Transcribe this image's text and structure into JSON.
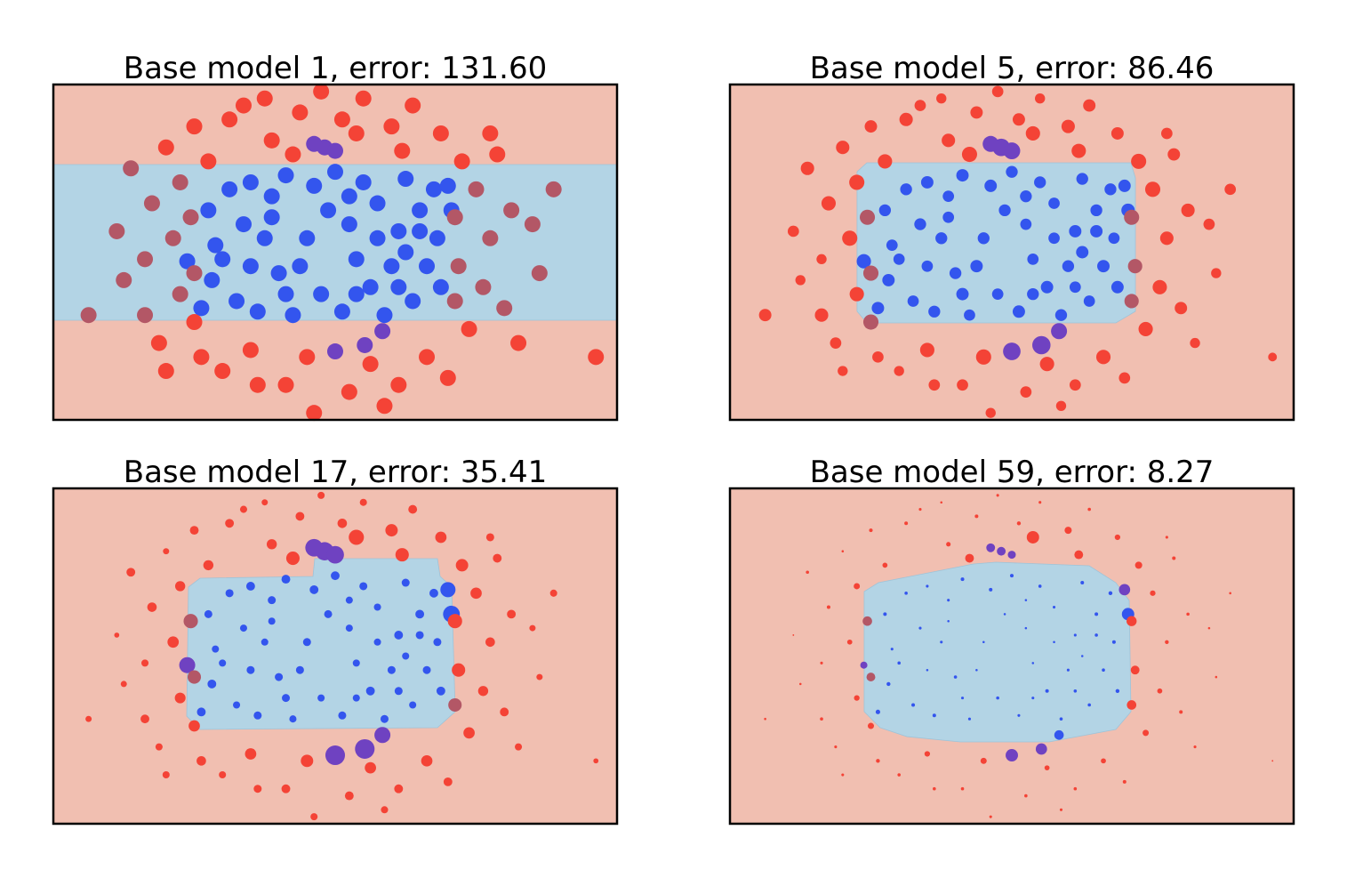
{
  "chart_data": {
    "type": "scatter",
    "grid": false,
    "axes_ticks": false,
    "xlim": [
      -4,
      4
    ],
    "ylim": [
      -2.4,
      2.4
    ],
    "colors": {
      "class_0_region": "#f1bfb1",
      "class_1_region": "#b3d4e5",
      "class_0_point": "#f44336",
      "class_1_point": "#3355ee",
      "class_0_point_in_class_1_region": "#b35766",
      "class_1_point_in_class_0_region": "#6f42c1",
      "frame": "#000000"
    },
    "point_columns": [
      "x",
      "y",
      "label",
      "weight_panel_1",
      "weight_panel_2",
      "weight_panel_3",
      "weight_panel_4"
    ],
    "points": [
      [
        -1.8,
        0.6,
        1,
        1,
        0.55,
        0.25,
        0.05
      ],
      [
        -1.7,
        0.1,
        1,
        1,
        0.5,
        0.2,
        0.03
      ],
      [
        -1.75,
        -0.4,
        1,
        1,
        0.6,
        0.3,
        0.06
      ],
      [
        -1.5,
        0.9,
        1,
        1,
        0.55,
        0.25,
        0.04
      ],
      [
        -1.4,
        -0.7,
        1,
        1,
        0.5,
        0.2,
        0.05
      ],
      [
        -1.2,
        1.0,
        1,
        1,
        0.6,
        0.3,
        0.03
      ],
      [
        -1.1,
        -0.85,
        1,
        1,
        0.55,
        0.25,
        0.05
      ],
      [
        -0.9,
        0.5,
        1,
        1,
        0.5,
        0.2,
        0.02
      ],
      [
        -0.8,
        -0.3,
        1,
        1,
        0.55,
        0.25,
        0.04
      ],
      [
        -0.7,
        1.1,
        1,
        1,
        0.6,
        0.3,
        0.05
      ],
      [
        -0.6,
        -0.9,
        1,
        1,
        0.5,
        0.2,
        0.03
      ],
      [
        -0.4,
        0.2,
        1,
        1,
        0.55,
        0.25,
        0.02
      ],
      [
        -0.3,
        0.95,
        1,
        1,
        0.6,
        0.3,
        0.05
      ],
      [
        -0.2,
        -0.6,
        1,
        1,
        0.5,
        0.2,
        0.04
      ],
      [
        0,
        1.15,
        1,
        1,
        0.55,
        0.3,
        0.05
      ],
      [
        0.1,
        -0.85,
        1,
        1,
        0.6,
        0.25,
        0.03
      ],
      [
        0.2,
        0.4,
        1,
        1,
        0.5,
        0.2,
        0.02
      ],
      [
        0.4,
        1.0,
        1,
        1,
        0.55,
        0.25,
        0.04
      ],
      [
        0.5,
        -0.5,
        1,
        1,
        0.6,
        0.3,
        0.05
      ],
      [
        0.6,
        0.7,
        1,
        1,
        0.5,
        0.2,
        0.03
      ],
      [
        0.7,
        -0.9,
        1,
        1,
        0.55,
        0.25,
        0.04
      ],
      [
        0.9,
        0.3,
        1,
        1,
        0.6,
        0.3,
        0.03
      ],
      [
        1.0,
        1.05,
        1,
        1,
        0.55,
        0.25,
        0.05
      ],
      [
        1.1,
        -0.7,
        1,
        1,
        0.5,
        0.2,
        0.04
      ],
      [
        1.2,
        0.6,
        1,
        1,
        0.55,
        0.3,
        0.05
      ],
      [
        1.3,
        -0.2,
        1,
        1,
        0.6,
        0.25,
        0.04
      ],
      [
        1.4,
        0.9,
        1,
        1,
        0.55,
        0.3,
        0.06
      ],
      [
        1.45,
        0.2,
        1,
        1,
        0.5,
        0.25,
        0.05
      ],
      [
        1.5,
        -0.5,
        1,
        1,
        0.6,
        0.3,
        0.06
      ],
      [
        -1.3,
        0.4,
        1,
        1,
        0.55,
        0.2,
        0.03
      ],
      [
        -1.2,
        -0.2,
        1,
        1,
        0.5,
        0.25,
        0.02
      ],
      [
        -1.0,
        0.2,
        1,
        1,
        0.55,
        0.2,
        0.03
      ],
      [
        -0.5,
        -0.2,
        1,
        1,
        0.6,
        0.25,
        0.02
      ],
      [
        0.3,
        -0.1,
        1,
        1,
        0.5,
        0.2,
        0.02
      ],
      [
        0.8,
        -0.2,
        1,
        1,
        0.55,
        0.25,
        0.03
      ],
      [
        1.0,
        0.0,
        1,
        1,
        0.6,
        0.2,
        0.02
      ],
      [
        -0.9,
        0.8,
        1,
        1,
        0.5,
        0.25,
        0.03
      ],
      [
        0.2,
        0.8,
        1,
        1,
        0.55,
        0.2,
        0.02
      ],
      [
        1.2,
        0.3,
        1,
        1,
        0.6,
        0.25,
        0.04
      ],
      [
        -1.6,
        -0.1,
        1,
        1,
        0.5,
        0.2,
        0.04
      ],
      [
        -0.1,
        0.6,
        1,
        1,
        0.55,
        0.25,
        0.02
      ],
      [
        0.6,
        0.2,
        1,
        1,
        0.5,
        0.2,
        0.02
      ],
      [
        -0.7,
        -0.6,
        1,
        1,
        0.6,
        0.25,
        0.03
      ],
      [
        0.3,
        -0.6,
        1,
        1,
        0.55,
        0.2,
        0.03
      ],
      [
        0.9,
        -0.5,
        1,
        1,
        0.5,
        0.25,
        0.04
      ],
      [
        -1.9,
        -0.8,
        1,
        1,
        0.6,
        0.3,
        0.08
      ],
      [
        -0.15,
        1.5,
        1,
        1,
        1.2,
        1.3,
        0.3
      ],
      [
        0.0,
        1.45,
        1,
        1,
        1.1,
        1.2,
        0.25
      ],
      [
        -0.3,
        1.55,
        1,
        1,
        1.0,
        1.2,
        0.3
      ],
      [
        0.0,
        -1.42,
        1,
        1,
        1.2,
        1.5,
        0.6
      ],
      [
        0.42,
        -1.33,
        1,
        1,
        1.3,
        1.5,
        0.5
      ],
      [
        0.67,
        -1.13,
        1,
        1,
        1.0,
        1.0,
        0.35
      ],
      [
        1.65,
        0.6,
        1,
        1,
        0.7,
        1.1,
        0.6
      ],
      [
        -2.1,
        -0.13,
        1,
        1,
        0.8,
        1.0,
        0.2
      ],
      [
        1.6,
        0.95,
        1,
        1,
        0.6,
        0.9,
        0.5
      ],
      [
        -3.5,
        -0.9,
        0,
        1,
        0.6,
        0.15,
        0.02
      ],
      [
        -3.1,
        0.3,
        0,
        1,
        0.5,
        0.1,
        0.01
      ],
      [
        -2.9,
        1.2,
        0,
        1,
        0.7,
        0.3,
        0.04
      ],
      [
        -2.7,
        -0.1,
        0,
        1,
        0.4,
        0.2,
        0.03
      ],
      [
        -2.6,
        0.7,
        0,
        1,
        0.8,
        0.35,
        0.05
      ],
      [
        -2.5,
        -1.3,
        0,
        1,
        0.5,
        0.2,
        0.03
      ],
      [
        -2.4,
        1.5,
        0,
        1,
        0.7,
        0.15,
        0.02
      ],
      [
        -2.3,
        0.2,
        0,
        1,
        0.9,
        0.5,
        0.1
      ],
      [
        -2.2,
        -0.6,
        0,
        1,
        0.8,
        0.45,
        0.12
      ],
      [
        -2.2,
        1.0,
        0,
        1,
        0.9,
        0.4,
        0.15
      ],
      [
        -2.0,
        1.8,
        0,
        1,
        0.6,
        0.3,
        0.05
      ],
      [
        -1.9,
        -1.5,
        0,
        1,
        0.5,
        0.35,
        0.06
      ],
      [
        -1.8,
        1.3,
        0,
        1,
        0.8,
        0.4,
        0.1
      ],
      [
        -1.6,
        -1.7,
        0,
        1,
        0.4,
        0.2,
        0.04
      ],
      [
        -1.5,
        1.9,
        0,
        1,
        0.7,
        0.3,
        0.05
      ],
      [
        -1.2,
        -1.4,
        0,
        1,
        0.8,
        0.5,
        0.12
      ],
      [
        -1.0,
        2.2,
        0,
        1,
        0.4,
        0.15,
        0.02
      ],
      [
        -0.9,
        1.6,
        0,
        1,
        0.7,
        0.4,
        0.08
      ],
      [
        -0.7,
        -1.9,
        0,
        1,
        0.5,
        0.3,
        0.04
      ],
      [
        -0.5,
        2.0,
        0,
        1,
        0.6,
        0.3,
        0.05
      ],
      [
        -0.4,
        -1.5,
        0,
        1,
        0.9,
        0.6,
        0.15
      ],
      [
        -0.2,
        2.3,
        0,
        1,
        0.5,
        0.2,
        0.03
      ],
      [
        0.1,
        1.9,
        0,
        1,
        0.6,
        0.35,
        0.06
      ],
      [
        0.2,
        -2.0,
        0,
        1,
        0.5,
        0.3,
        0.04
      ],
      [
        0.4,
        2.2,
        0,
        1,
        0.4,
        0.2,
        0.03
      ],
      [
        0.5,
        -1.6,
        0,
        1,
        0.8,
        0.5,
        0.1
      ],
      [
        0.8,
        1.8,
        0,
        1,
        0.7,
        0.6,
        0.2
      ],
      [
        0.9,
        -1.9,
        0,
        1,
        0.5,
        0.3,
        0.04
      ],
      [
        1.1,
        2.1,
        0,
        1,
        0.6,
        0.3,
        0.04
      ],
      [
        1.3,
        -1.5,
        0,
        1,
        0.8,
        0.5,
        0.1
      ],
      [
        1.5,
        1.7,
        0,
        1,
        0.6,
        0.5,
        0.12
      ],
      [
        1.6,
        -1.8,
        0,
        1,
        0.5,
        0.3,
        0.05
      ],
      [
        1.8,
        1.3,
        0,
        1,
        0.9,
        0.6,
        0.2
      ],
      [
        1.9,
        -1.1,
        0,
        1,
        0.8,
        0.5,
        0.15
      ],
      [
        2.0,
        0.9,
        0,
        1,
        0.9,
        0.5,
        0.12
      ],
      [
        2.1,
        -0.5,
        0,
        1,
        0.8,
        0.4,
        0.1
      ],
      [
        2.2,
        0.2,
        0,
        1,
        0.7,
        0.35,
        0.06
      ],
      [
        2.3,
        1.4,
        0,
        1,
        0.6,
        0.3,
        0.05
      ],
      [
        2.4,
        -0.8,
        0,
        1,
        0.6,
        0.3,
        0.05
      ],
      [
        2.5,
        0.6,
        0,
        1,
        0.7,
        0.3,
        0.04
      ],
      [
        2.6,
        -1.3,
        0,
        1,
        0.4,
        0.2,
        0.03
      ],
      [
        2.8,
        0.4,
        0,
        1,
        0.5,
        0.15,
        0.02
      ],
      [
        3.1,
        0.9,
        0,
        1,
        0.5,
        0.2,
        0.02
      ],
      [
        -2.7,
        -0.9,
        0,
        1,
        0.7,
        0.3,
        0.04
      ],
      [
        -2.0,
        -1.0,
        0,
        1,
        0.9,
        0.5,
        0.15
      ],
      [
        2.2,
        1.7,
        0,
        1,
        0.5,
        0.25,
        0.03
      ],
      [
        -3.0,
        -0.4,
        0,
        1,
        0.4,
        0.15,
        0.02
      ],
      [
        -1.3,
        2.1,
        0,
        1,
        0.5,
        0.2,
        0.03
      ],
      [
        0.7,
        -2.2,
        0,
        1,
        0.4,
        0.2,
        0.03
      ],
      [
        -1.1,
        -1.9,
        0,
        1,
        0.5,
        0.25,
        0.04
      ],
      [
        1.7,
        0.5,
        0,
        1,
        0.9,
        0.8,
        0.4
      ],
      [
        -2.05,
        0.5,
        0,
        1,
        0.9,
        0.8,
        0.35
      ],
      [
        -2.0,
        -0.3,
        0,
        1,
        0.9,
        0.7,
        0.3
      ],
      [
        1.75,
        -0.2,
        0,
        1,
        0.8,
        0.7,
        0.3
      ],
      [
        1.7,
        -0.7,
        0,
        1,
        0.8,
        0.7,
        0.35
      ],
      [
        3.7,
        -1.5,
        0,
        1,
        0.3,
        0.1,
        0.01
      ],
      [
        -0.3,
        -2.3,
        0,
        1,
        0.4,
        0.2,
        0.03
      ],
      [
        0.3,
        1.7,
        0,
        1,
        0.8,
        0.9,
        0.6
      ],
      [
        -0.6,
        1.4,
        0,
        1,
        0.9,
        0.7,
        0.3
      ],
      [
        0.95,
        1.45,
        0,
        1,
        0.8,
        0.7,
        0.3
      ],
      [
        2.9,
        -0.3,
        0,
        1,
        0.4,
        0.15,
        0.02
      ],
      [
        -2.4,
        -1.7,
        0,
        1,
        0.4,
        0.2,
        0.03
      ]
    ],
    "panels": [
      {
        "title": "Base model 1, error: 131.60",
        "class_1_region": [
          [
            -4,
            1.254
          ],
          [
            4,
            1.254
          ],
          [
            4,
            -0.974
          ],
          [
            -4,
            -0.974
          ]
        ]
      },
      {
        "title": "Base model 5, error: 86.46",
        "class_1_region": [
          [
            -2.196,
            1.152
          ],
          [
            -2.057,
            1.28
          ],
          [
            1.69,
            1.28
          ],
          [
            1.754,
            1.063
          ],
          [
            1.754,
            -0.847
          ],
          [
            1.476,
            -1.012
          ],
          [
            -2.057,
            -1.012
          ],
          [
            -2.196,
            -0.847
          ]
        ]
      },
      {
        "title": "Base model 17, error: 35.41",
        "class_1_region": [
          [
            -2.082,
            0.987
          ],
          [
            -1.918,
            1.114
          ],
          [
            -0.315,
            1.14
          ],
          [
            -0.29,
            1.394
          ],
          [
            1.451,
            1.394
          ],
          [
            1.489,
            1.14
          ],
          [
            1.653,
            0.987
          ],
          [
            1.703,
            -0.796
          ],
          [
            1.451,
            -1.025
          ],
          [
            -1.918,
            -1.05
          ],
          [
            -2.107,
            -0.86
          ]
        ]
      },
      {
        "title": "Base model 59, error: 8.27",
        "class_1_region": [
          [
            -2.095,
            0.923
          ],
          [
            -1.893,
            1.05
          ],
          [
            -0.543,
            1.318
          ],
          [
            -0.227,
            1.343
          ],
          [
            1.098,
            1.292
          ],
          [
            1.476,
            1.05
          ],
          [
            1.666,
            0.796
          ],
          [
            1.691,
            -0.796
          ],
          [
            1.476,
            -1.05
          ],
          [
            0.53,
            -1.229
          ],
          [
            -0.732,
            -1.229
          ],
          [
            -1.489,
            -1.153
          ],
          [
            -1.868,
            -1.025
          ],
          [
            -2.095,
            -0.796
          ]
        ]
      }
    ]
  }
}
